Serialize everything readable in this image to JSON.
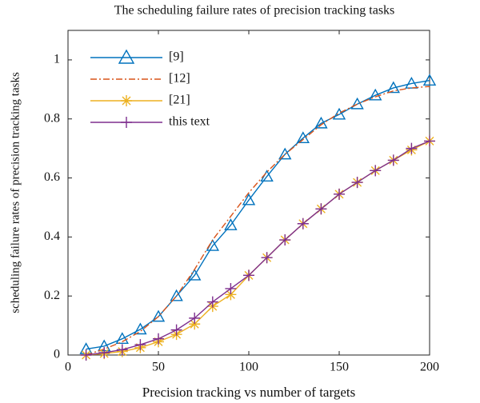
{
  "chart_data": {
    "type": "line",
    "title": "The scheduling failure rates of precision tracking tasks",
    "x_label": "Precision tracking vs number of targets",
    "y_label": "scheduling failure rates of precision tracking tasks",
    "x": [
      10,
      20,
      30,
      40,
      50,
      60,
      70,
      80,
      90,
      100,
      110,
      120,
      130,
      140,
      150,
      160,
      170,
      180,
      190,
      200
    ],
    "series": [
      {
        "name": "[9]",
        "color": "#0072bd",
        "marker": "triangle",
        "dash": "solid",
        "values": [
          0.02,
          0.03,
          0.055,
          0.087,
          0.13,
          0.2,
          0.27,
          0.37,
          0.44,
          0.525,
          0.605,
          0.68,
          0.735,
          0.785,
          0.815,
          0.85,
          0.88,
          0.905,
          0.92,
          0.93
        ]
      },
      {
        "name": "[12]",
        "color": "#d95319",
        "marker": "none",
        "dash": "dashdot",
        "values": [
          0.0,
          0.02,
          0.045,
          0.08,
          0.13,
          0.2,
          0.29,
          0.39,
          0.47,
          0.55,
          0.62,
          0.68,
          0.73,
          0.78,
          0.82,
          0.85,
          0.875,
          0.895,
          0.905,
          0.91
        ]
      },
      {
        "name": "[21]",
        "color": "#edb120",
        "marker": "star",
        "dash": "solid",
        "values": [
          0.0,
          0.005,
          0.012,
          0.025,
          0.045,
          0.07,
          0.105,
          0.165,
          0.205,
          0.27,
          0.33,
          0.39,
          0.445,
          0.495,
          0.545,
          0.585,
          0.625,
          0.66,
          0.695,
          0.725
        ]
      },
      {
        "name": "this text",
        "color": "#7e2f8e",
        "marker": "plus",
        "dash": "solid",
        "values": [
          0.0,
          0.008,
          0.018,
          0.035,
          0.055,
          0.085,
          0.125,
          0.18,
          0.225,
          0.27,
          0.33,
          0.39,
          0.445,
          0.495,
          0.545,
          0.585,
          0.625,
          0.66,
          0.7,
          0.725
        ]
      }
    ],
    "xlim": [
      0,
      200
    ],
    "xticks": [
      0,
      50,
      100,
      150,
      200
    ],
    "ylim": [
      0,
      1.1
    ],
    "yticks": [
      0,
      0.2,
      0.4,
      0.6,
      0.8,
      1
    ],
    "legend": "upper left"
  }
}
